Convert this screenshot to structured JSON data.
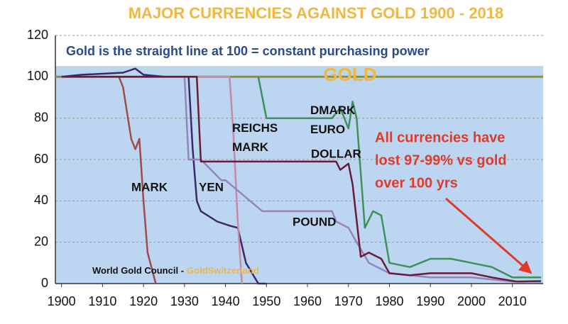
{
  "chart_data": {
    "type": "line",
    "title": "MAJOR CURRENCIES AGAINST GOLD 1900 - 2018",
    "subtitle": "Gold is the straight line at 100 = constant purchasing power",
    "annotation": [
      "All currencies have",
      "lost 97-99% vs gold",
      "over 100 yrs"
    ],
    "source": {
      "text": "World Gold Council -",
      "highlight": "GoldSwitzerland"
    },
    "xlim": [
      1898.5,
      2017.5
    ],
    "xticks": [
      1900,
      1910,
      1920,
      1930,
      1940,
      1950,
      1960,
      1970,
      1980,
      1990,
      2000,
      2010
    ],
    "ylim": [
      0,
      120
    ],
    "yticks": [
      0,
      20,
      40,
      60,
      80,
      100,
      120
    ],
    "grid": true,
    "series": [
      {
        "name": "GOLD",
        "color": "#8f8f3a",
        "x": [
          1898.5,
          2017.5
        ],
        "values": [
          100,
          100
        ]
      },
      {
        "name": "MARK",
        "color": "#a04a4a",
        "x": [
          1900,
          1914,
          1915,
          1917,
          1918,
          1919,
          1920,
          1921,
          1923
        ],
        "values": [
          100,
          100,
          95,
          70,
          65,
          70,
          40,
          15,
          0
        ]
      },
      {
        "name": "YEN",
        "color": "#3a2a6a",
        "x": [
          1900,
          1905,
          1915,
          1918,
          1920,
          1925,
          1931,
          1932,
          1933,
          1934,
          1938,
          1941,
          1943,
          1945,
          1948,
          1950
        ],
        "values": [
          100,
          101,
          102,
          104,
          101,
          100,
          100,
          65,
          40,
          35,
          30,
          28,
          27,
          10,
          0,
          0
        ]
      },
      {
        "name": "REICHS MARK",
        "color": "#c98aa8",
        "x": [
          1924,
          1941,
          1942,
          1943,
          1944
        ],
        "values": [
          100,
          100,
          70,
          30,
          0
        ]
      },
      {
        "name": "POUND",
        "color": "#9385bd",
        "x": [
          1900,
          1930,
          1931,
          1934,
          1939,
          1940,
          1949,
          1966,
          1967,
          1970,
          1972,
          1975,
          1980,
          1990,
          2000,
          2010,
          2017
        ],
        "values": [
          100,
          100,
          60,
          60,
          50,
          50,
          35,
          35,
          30,
          27,
          20,
          10,
          5,
          3,
          3,
          1,
          1
        ]
      },
      {
        "name": "DOLLAR",
        "color": "#6a1a3a",
        "x": [
          1900,
          1933,
          1934,
          1967,
          1968,
          1970,
          1971,
          1973,
          1975,
          1978,
          1980,
          1985,
          1990,
          1995,
          2000,
          2005,
          2011,
          2017
        ],
        "values": [
          100,
          100,
          59,
          59,
          55,
          58,
          48,
          13,
          15,
          12,
          5,
          4,
          5,
          5,
          5,
          3,
          1,
          1.2
        ]
      },
      {
        "name": "DMARK EURO",
        "color": "#3f8f5a",
        "x": [
          1948,
          1950,
          1961,
          1966,
          1968,
          1970,
          1971,
          1972,
          1974,
          1976,
          1978,
          1980,
          1985,
          1990,
          1995,
          2000,
          2005,
          2010,
          2017
        ],
        "values": [
          100,
          80,
          80,
          80,
          85,
          75,
          88,
          80,
          27,
          35,
          33,
          10,
          8,
          12,
          12,
          10,
          8,
          3,
          3
        ]
      }
    ]
  }
}
